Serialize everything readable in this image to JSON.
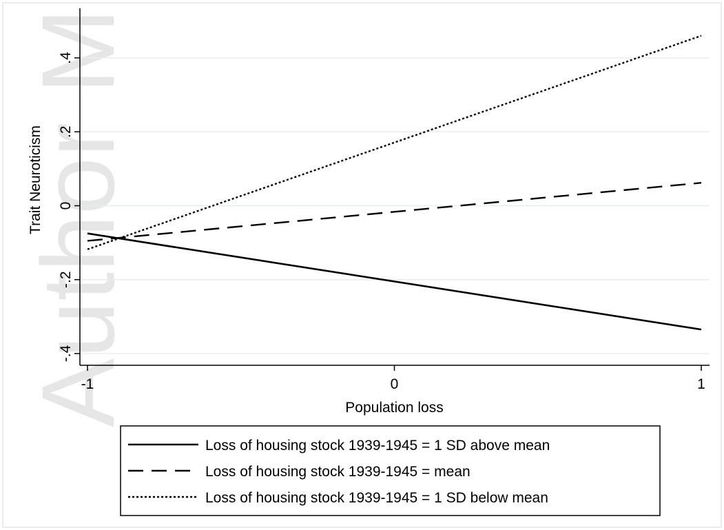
{
  "watermark": "Author M",
  "chart_data": {
    "type": "line",
    "title": "",
    "xlabel": "Population loss",
    "ylabel": "Trait Neuroticism",
    "xlim": [
      -1,
      1
    ],
    "ylim": [
      -0.4,
      0.4
    ],
    "x_ticks": [
      -1,
      0,
      1
    ],
    "x_tick_labels": [
      "-1",
      "0",
      "1"
    ],
    "y_ticks": [
      -0.4,
      -0.2,
      0,
      0.2,
      0.4
    ],
    "y_tick_labels": [
      "-.4",
      "-.2",
      "0",
      ".2",
      ".4"
    ],
    "grid": "horizontal",
    "legend_position": "bottom",
    "x": [
      -1,
      1
    ],
    "series": [
      {
        "name": "Loss of housing stock 1939-1945 = 1 SD above mean",
        "style": "solid",
        "values": [
          -0.075,
          -0.335
        ]
      },
      {
        "name": "Loss of housing stock 1939-1945 = mean",
        "style": "dashed",
        "values": [
          -0.095,
          0.062
        ]
      },
      {
        "name": "Loss of housing stock 1939-1945 = 1 SD below mean",
        "style": "dotted",
        "values": [
          -0.118,
          0.46
        ]
      }
    ],
    "colors": {
      "line": "#000000",
      "grid": "#e8eeee",
      "background": "#ffffff",
      "frame": "#ececec"
    }
  }
}
